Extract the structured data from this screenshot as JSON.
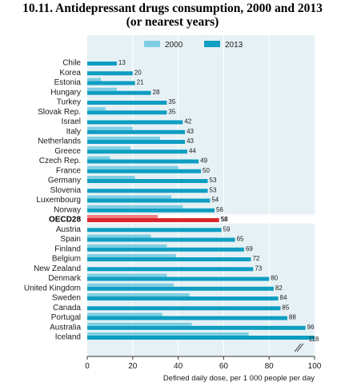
{
  "title_line1": "10.11. Antidepressant drugs consumption, 2000 and 2013",
  "title_line2": "(or nearest years)",
  "chart_data": {
    "type": "bar",
    "orientation": "horizontal",
    "xlabel": "Defined daily dose, per 1 000 people per day",
    "xlim": [
      0,
      100
    ],
    "xticks": [
      0,
      20,
      40,
      60,
      80,
      100
    ],
    "legend": {
      "placement": "top",
      "entries": [
        "2000",
        "2013"
      ]
    },
    "colors": {
      "2000": "#7fcfe3",
      "2013": "#0e9ec2",
      "highlight_2000": "#f07f7f",
      "highlight_2013": "#d9262d",
      "panel": "#e6f1f5"
    },
    "highlight_category": "OECD28",
    "axis_break": {
      "at": 100,
      "label": "118"
    },
    "categories": [
      "Chile",
      "Korea",
      "Estonia",
      "Hungary",
      "Turkey",
      "Slovak Rep.",
      "Israel",
      "Italy",
      "Netherlands",
      "Greece",
      "Czech Rep.",
      "France",
      "Germany",
      "Slovenia",
      "Luxembourg",
      "Norway",
      "OECD28",
      "Austria",
      "Spain",
      "Finland",
      "Belgium",
      "New Zealand",
      "Denmark",
      "United Kingdom",
      "Sweden",
      "Canada",
      "Portugal",
      "Australia",
      "Iceland"
    ],
    "series": [
      {
        "name": "2000",
        "values": [
          null,
          null,
          6,
          13,
          null,
          8,
          null,
          20,
          32,
          19,
          10,
          40,
          21,
          null,
          37,
          42,
          31,
          null,
          28,
          35,
          39,
          null,
          35,
          38,
          45,
          null,
          33,
          46,
          71
        ]
      },
      {
        "name": "2013",
        "values": [
          13,
          20,
          21,
          28,
          35,
          35,
          42,
          43,
          43,
          44,
          49,
          50,
          53,
          53,
          54,
          56,
          58,
          59,
          65,
          69,
          72,
          73,
          80,
          82,
          84,
          85,
          88,
          96,
          118
        ]
      }
    ],
    "value_labels": [
      "13",
      "20",
      "21",
      "28",
      "35",
      "35",
      "42",
      "43",
      "43",
      "44",
      "49",
      "50",
      "53",
      "53",
      "54",
      "56",
      "58",
      "59",
      "65",
      "69",
      "72",
      "73",
      "80",
      "82",
      "84",
      "85",
      "88",
      "96",
      "118"
    ]
  }
}
